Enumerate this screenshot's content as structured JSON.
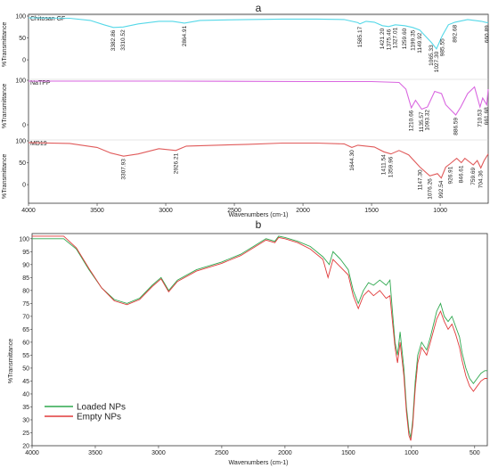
{
  "panel_a": {
    "letter": "a",
    "xlabel": "Wavenumbers (cm-1)",
    "ylabel": "%Transmittance"
  },
  "panel_b": {
    "letter": "b",
    "xlabel": "Wavenumbers (cm-1)",
    "ylabel": "%Transmittance"
  },
  "colors": {
    "chitosan": "#55d8e8",
    "natpp": "#d966e0",
    "md19": "#e05a5a",
    "loaded": "#2fa84f",
    "empty": "#e03a3a",
    "grid": "#cccccc"
  },
  "chart_data": [
    {
      "type": "line",
      "panel": "a",
      "xlabel": "Wavenumbers (cm-1)",
      "ylabel": "%Transmittance",
      "xlim": [
        4000,
        650
      ],
      "x_ticks": [
        "4000",
        "3500",
        "3000",
        "2500",
        "2000",
        "1500",
        "1000"
      ],
      "series": [
        {
          "name": "Chitosan GF",
          "y_ticks": [
            "100",
            "50",
            "0"
          ],
          "points": [
            [
              4000,
              96
            ],
            [
              3700,
              95
            ],
            [
              3550,
              90
            ],
            [
              3450,
              80
            ],
            [
              3382,
              74
            ],
            [
              3310,
              75
            ],
            [
              3200,
              82
            ],
            [
              3050,
              88
            ],
            [
              2950,
              88
            ],
            [
              2864,
              84
            ],
            [
              2750,
              90
            ],
            [
              2400,
              92
            ],
            [
              2150,
              93
            ],
            [
              1900,
              93
            ],
            [
              1700,
              92
            ],
            [
              1600,
              85
            ],
            [
              1585,
              82
            ],
            [
              1540,
              88
            ],
            [
              1480,
              86
            ],
            [
              1421,
              78
            ],
            [
              1375,
              76
            ],
            [
              1327,
              80
            ],
            [
              1259,
              78
            ],
            [
              1200,
              74
            ],
            [
              1149,
              68
            ],
            [
              1065,
              40
            ],
            [
              1027,
              25
            ],
            [
              985,
              55
            ],
            [
              940,
              80
            ],
            [
              892,
              86
            ],
            [
              800,
              92
            ],
            [
              700,
              88
            ],
            [
              660,
              85
            ],
            [
              650,
              86
            ]
          ],
          "peaks": [
            "3382.86",
            "3310.52",
            "2864.91",
            "1585.17",
            "1421.20",
            "1375.46",
            "1327.01",
            "1259.60",
            "1199.35",
            "1149.92",
            "1065.33",
            "1027.30",
            "985.55",
            "892.68",
            "660.89"
          ]
        },
        {
          "name": "NaTPP",
          "y_ticks": [
            "100",
            "0"
          ],
          "points": [
            [
              4000,
              98
            ],
            [
              3000,
              98
            ],
            [
              2000,
              97
            ],
            [
              1500,
              97
            ],
            [
              1300,
              95
            ],
            [
              1250,
              80
            ],
            [
              1210,
              38
            ],
            [
              1180,
              55
            ],
            [
              1135,
              35
            ],
            [
              1093,
              40
            ],
            [
              1040,
              75
            ],
            [
              990,
              70
            ],
            [
              960,
              45
            ],
            [
              886,
              22
            ],
            [
              850,
              40
            ],
            [
              800,
              70
            ],
            [
              750,
              85
            ],
            [
              710,
              40
            ],
            [
              690,
              60
            ],
            [
              661,
              45
            ],
            [
              650,
              80
            ]
          ],
          "peaks": [
            "1210.66",
            "1135.57",
            "1093.32",
            "886.59",
            "710.53",
            "661.68"
          ]
        },
        {
          "name": "MD19",
          "y_ticks": [
            "100",
            "50",
            "0"
          ],
          "points": [
            [
              4000,
              96
            ],
            [
              3700,
              94
            ],
            [
              3500,
              85
            ],
            [
              3400,
              72
            ],
            [
              3307,
              65
            ],
            [
              3200,
              70
            ],
            [
              3050,
              82
            ],
            [
              2926,
              78
            ],
            [
              2850,
              88
            ],
            [
              2400,
              92
            ],
            [
              2150,
              95
            ],
            [
              1900,
              95
            ],
            [
              1700,
              93
            ],
            [
              1644,
              85
            ],
            [
              1600,
              90
            ],
            [
              1480,
              86
            ],
            [
              1411,
              75
            ],
            [
              1359,
              70
            ],
            [
              1300,
              78
            ],
            [
              1230,
              68
            ],
            [
              1147,
              40
            ],
            [
              1076,
              20
            ],
            [
              1020,
              25
            ],
            [
              992,
              15
            ],
            [
              960,
              40
            ],
            [
              926,
              48
            ],
            [
              880,
              60
            ],
            [
              846,
              50
            ],
            [
              820,
              60
            ],
            [
              759,
              45
            ],
            [
              730,
              55
            ],
            [
              704,
              38
            ],
            [
              680,
              55
            ],
            [
              650,
              70
            ]
          ],
          "peaks": [
            "3307.93",
            "2926.21",
            "1644.30",
            "1411.54",
            "1359.96",
            "1147.30",
            "1076.26",
            "992.54",
            "926.91",
            "846.61",
            "759.69",
            "704.36"
          ]
        }
      ]
    },
    {
      "type": "line",
      "panel": "b",
      "xlabel": "Wavenumbers (cm-1)",
      "ylabel": "%Transmittance",
      "xlim": [
        4000,
        400
      ],
      "ylim": [
        20,
        102
      ],
      "x_ticks": [
        "4000",
        "3500",
        "3000",
        "2500",
        "2000",
        "1500",
        "1000",
        "500"
      ],
      "y_ticks": [
        "100",
        "95",
        "90",
        "85",
        "80",
        "75",
        "70",
        "65",
        "60",
        "55",
        "50",
        "45",
        "40",
        "35",
        "30",
        "25",
        "20"
      ],
      "legend_position": "bottom-left",
      "series": [
        {
          "name": "Loaded NPs",
          "points": [
            [
              4000,
              100
            ],
            [
              3750,
              100
            ],
            [
              3650,
              96
            ],
            [
              3550,
              88
            ],
            [
              3450,
              81
            ],
            [
              3350,
              76.5
            ],
            [
              3250,
              75
            ],
            [
              3150,
              77
            ],
            [
              3050,
              82
            ],
            [
              2980,
              85
            ],
            [
              2920,
              80
            ],
            [
              2850,
              84
            ],
            [
              2700,
              88
            ],
            [
              2500,
              91
            ],
            [
              2350,
              94
            ],
            [
              2250,
              97
            ],
            [
              2150,
              100
            ],
            [
              2080,
              99
            ],
            [
              2050,
              101
            ],
            [
              2000,
              100.5
            ],
            [
              1900,
              99
            ],
            [
              1800,
              97
            ],
            [
              1700,
              93
            ],
            [
              1650,
              90
            ],
            [
              1620,
              95
            ],
            [
              1560,
              92
            ],
            [
              1500,
              88
            ],
            [
              1460,
              80
            ],
            [
              1420,
              75
            ],
            [
              1380,
              80
            ],
            [
              1340,
              83
            ],
            [
              1300,
              82
            ],
            [
              1250,
              84
            ],
            [
              1200,
              82
            ],
            [
              1170,
              84
            ],
            [
              1150,
              72
            ],
            [
              1130,
              60
            ],
            [
              1110,
              55
            ],
            [
              1090,
              64
            ],
            [
              1060,
              50
            ],
            [
              1040,
              35
            ],
            [
              1020,
              26
            ],
            [
              1005,
              23
            ],
            [
              990,
              30
            ],
            [
              970,
              45
            ],
            [
              950,
              55
            ],
            [
              920,
              60
            ],
            [
              880,
              57
            ],
            [
              850,
              62
            ],
            [
              800,
              72
            ],
            [
              770,
              75
            ],
            [
              740,
              70
            ],
            [
              710,
              68
            ],
            [
              680,
              70
            ],
            [
              650,
              66
            ],
            [
              620,
              62
            ],
            [
              600,
              56
            ],
            [
              570,
              50
            ],
            [
              540,
              46
            ],
            [
              510,
              44
            ],
            [
              480,
              46
            ],
            [
              450,
              48
            ],
            [
              420,
              49
            ],
            [
              400,
              49
            ]
          ]
        },
        {
          "name": "Empty NPs",
          "points": [
            [
              4000,
              101
            ],
            [
              3750,
              101
            ],
            [
              3650,
              96.5
            ],
            [
              3550,
              88.5
            ],
            [
              3450,
              81
            ],
            [
              3350,
              76
            ],
            [
              3250,
              74.5
            ],
            [
              3150,
              76.5
            ],
            [
              3050,
              81.5
            ],
            [
              2980,
              84.5
            ],
            [
              2920,
              79.5
            ],
            [
              2850,
              83.5
            ],
            [
              2700,
              87.5
            ],
            [
              2500,
              90.5
            ],
            [
              2350,
              93.5
            ],
            [
              2250,
              96.5
            ],
            [
              2150,
              99.5
            ],
            [
              2080,
              98.5
            ],
            [
              2050,
              100.5
            ],
            [
              2000,
              100
            ],
            [
              1900,
              98.5
            ],
            [
              1800,
              96
            ],
            [
              1700,
              92
            ],
            [
              1660,
              85
            ],
            [
              1620,
              92
            ],
            [
              1560,
              89
            ],
            [
              1500,
              86
            ],
            [
              1460,
              78
            ],
            [
              1420,
              73
            ],
            [
              1380,
              78
            ],
            [
              1340,
              80
            ],
            [
              1300,
              78
            ],
            [
              1250,
              80
            ],
            [
              1200,
              77
            ],
            [
              1170,
              78
            ],
            [
              1150,
              68
            ],
            [
              1130,
              58
            ],
            [
              1110,
              52
            ],
            [
              1090,
              60
            ],
            [
              1060,
              47
            ],
            [
              1040,
              33
            ],
            [
              1020,
              24
            ],
            [
              1005,
              22
            ],
            [
              990,
              28
            ],
            [
              970,
              42
            ],
            [
              950,
              52
            ],
            [
              920,
              58
            ],
            [
              880,
              55
            ],
            [
              850,
              60
            ],
            [
              800,
              69
            ],
            [
              770,
              72
            ],
            [
              740,
              68
            ],
            [
              710,
              65
            ],
            [
              680,
              67
            ],
            [
              650,
              63
            ],
            [
              620,
              58
            ],
            [
              600,
              53
            ],
            [
              570,
              47
            ],
            [
              540,
              43
            ],
            [
              510,
              41
            ],
            [
              480,
              43
            ],
            [
              450,
              45
            ],
            [
              420,
              46
            ],
            [
              400,
              46
            ]
          ]
        }
      ]
    }
  ]
}
